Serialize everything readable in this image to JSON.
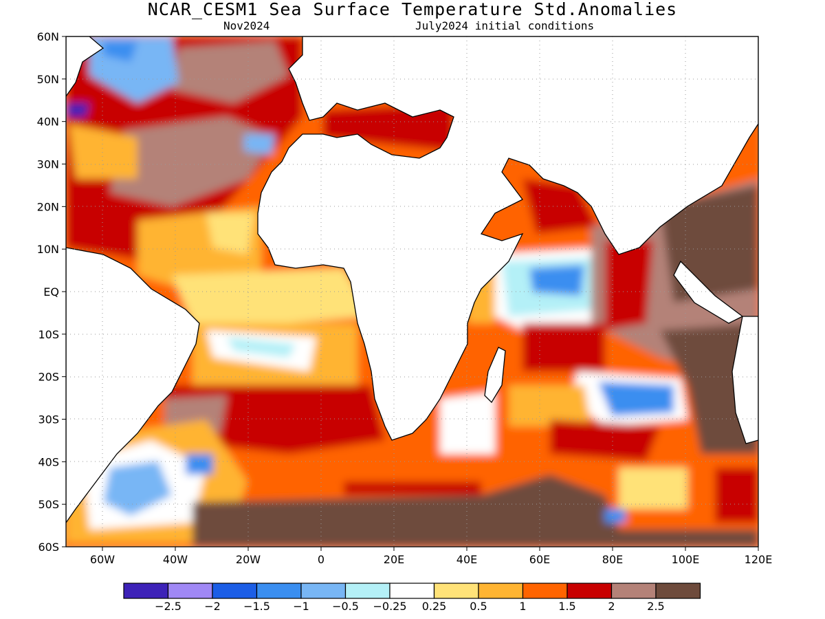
{
  "title": "NCAR_CESM1 Sea Surface Temperature Std.Anomalies",
  "subtitle_left": "Nov2024",
  "subtitle_right": "July2024 initial conditions",
  "map": {
    "lon_range": [
      -70,
      120
    ],
    "lat_range": [
      -60,
      60
    ],
    "lat_ticks": [
      "60N",
      "50N",
      "40N",
      "30N",
      "20N",
      "10N",
      "EQ",
      "10S",
      "20S",
      "30S",
      "40S",
      "50S",
      "60S"
    ],
    "lon_ticks": [
      "60W",
      "40W",
      "20W",
      "0",
      "20E",
      "40E",
      "60E",
      "80E",
      "100E",
      "120E"
    ],
    "grid": "dotted",
    "land_color": "#ffffff"
  },
  "legend": {
    "colors": [
      "#3d22b8",
      "#a088f5",
      "#1c5ee6",
      "#3a8ef0",
      "#78b6f5",
      "#b4f0f7",
      "#ffffff",
      "#ffe278",
      "#ffb432",
      "#ff6400",
      "#c80000",
      "#b48278",
      "#6e4b3c"
    ],
    "labels": [
      "−2.5",
      "−2",
      "−1.5",
      "−1",
      "−0.5",
      "−0.25",
      "0.25",
      "0.5",
      "1",
      "1.5",
      "2",
      "2.5"
    ]
  }
}
